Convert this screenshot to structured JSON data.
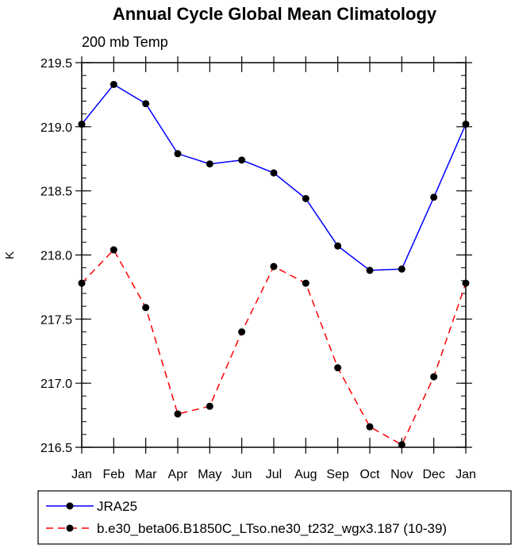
{
  "chart_data": {
    "type": "line",
    "title": "Annual Cycle Global Mean Climatology",
    "subtitle": "200 mb Temp",
    "ylabel": "K",
    "xlabel": "",
    "categories": [
      "Jan",
      "Feb",
      "Mar",
      "Apr",
      "May",
      "Jun",
      "Jul",
      "Aug",
      "Sep",
      "Oct",
      "Nov",
      "Dec",
      "Jan"
    ],
    "ylim": [
      216.5,
      219.5
    ],
    "yticks": [
      216.5,
      217.0,
      217.5,
      218.0,
      218.5,
      219.0,
      219.5
    ],
    "ytick_labels": [
      "216.5",
      "217.0",
      "217.5",
      "218.0",
      "218.5",
      "219.0",
      "219.5"
    ],
    "grid": false,
    "legend_position": "bottom",
    "series": [
      {
        "name": "JRA25",
        "color": "#0000ff",
        "dash": "solid",
        "values": [
          219.02,
          219.33,
          219.18,
          218.79,
          218.71,
          218.74,
          218.64,
          218.44,
          218.07,
          217.88,
          217.89,
          218.45,
          219.02
        ]
      },
      {
        "name": "b.e30_beta06.B1850C_LTso.ne30_t232_wgx3.187 (10-39)",
        "color": "#ff0000",
        "dash": "dashed",
        "values": [
          217.78,
          218.04,
          217.59,
          216.76,
          216.82,
          217.4,
          217.91,
          217.78,
          217.12,
          216.66,
          216.52,
          217.05,
          217.78
        ]
      }
    ]
  }
}
